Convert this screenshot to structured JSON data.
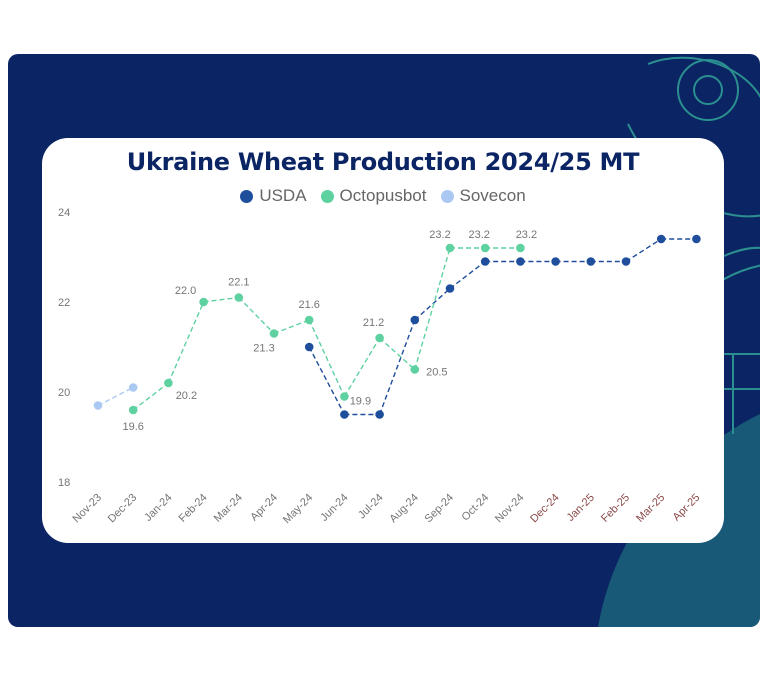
{
  "chart_data": {
    "type": "line",
    "title": "Ukraine Wheat Production 2024/25 MT",
    "categories": [
      "Nov-23",
      "Dec-23",
      "Jan-24",
      "Feb-24",
      "Mar-24",
      "Apr-24",
      "May-24",
      "Jun-24",
      "Jul-24",
      "Aug-24",
      "Sep-24",
      "Oct-24",
      "Nov-24",
      "Dec-24",
      "Jan-25",
      "Feb-25",
      "Mar-25",
      "Apr-25"
    ],
    "yticks": [
      "18",
      "20",
      "22",
      "24"
    ],
    "ylim": [
      18,
      24
    ],
    "legend_position": "top",
    "grid": false,
    "line_style": "dashed",
    "series": [
      {
        "name": "USDA",
        "color": "#1f4e9c",
        "values": [
          null,
          null,
          null,
          null,
          null,
          null,
          21.0,
          19.5,
          19.5,
          21.6,
          22.3,
          22.9,
          22.9,
          22.9,
          22.9,
          22.9,
          23.4,
          23.4
        ],
        "labels": [
          null,
          null,
          null,
          null,
          null,
          null,
          null,
          null,
          null,
          null,
          null,
          null,
          null,
          null,
          null,
          null,
          null,
          null
        ]
      },
      {
        "name": "Octopusbot",
        "color": "#5ed1a0",
        "values": [
          null,
          19.6,
          20.2,
          22.0,
          22.1,
          21.3,
          21.6,
          19.9,
          21.2,
          20.5,
          23.2,
          23.2,
          23.2,
          null,
          null,
          null,
          null,
          null
        ],
        "labels": [
          null,
          "19.6",
          "20.2",
          "22.0",
          "22.1",
          "21.3",
          "21.6",
          "19.9",
          "21.2",
          "20.5",
          "23.2",
          "23.2",
          "23.2",
          null,
          null,
          null,
          null,
          null
        ]
      },
      {
        "name": "Sovecon",
        "color": "#aac8f2",
        "values": [
          19.7,
          20.1,
          null,
          null,
          null,
          null,
          null,
          null,
          null,
          null,
          null,
          null,
          null,
          null,
          null,
          null,
          null,
          null
        ],
        "labels": [
          null,
          null,
          null,
          null,
          null,
          null,
          null,
          null,
          null,
          null,
          null,
          null,
          null,
          null,
          null,
          null,
          null,
          null
        ]
      }
    ]
  },
  "theme": {
    "panel_color": "#0b2463",
    "title_color": "#0b2463",
    "tick_color": "#757575",
    "future_tick_color": "#8b4a4a",
    "deco_line_color": "#2b8f90",
    "deco_fill_color": "#1c6b7d"
  },
  "future_from_index": 13
}
